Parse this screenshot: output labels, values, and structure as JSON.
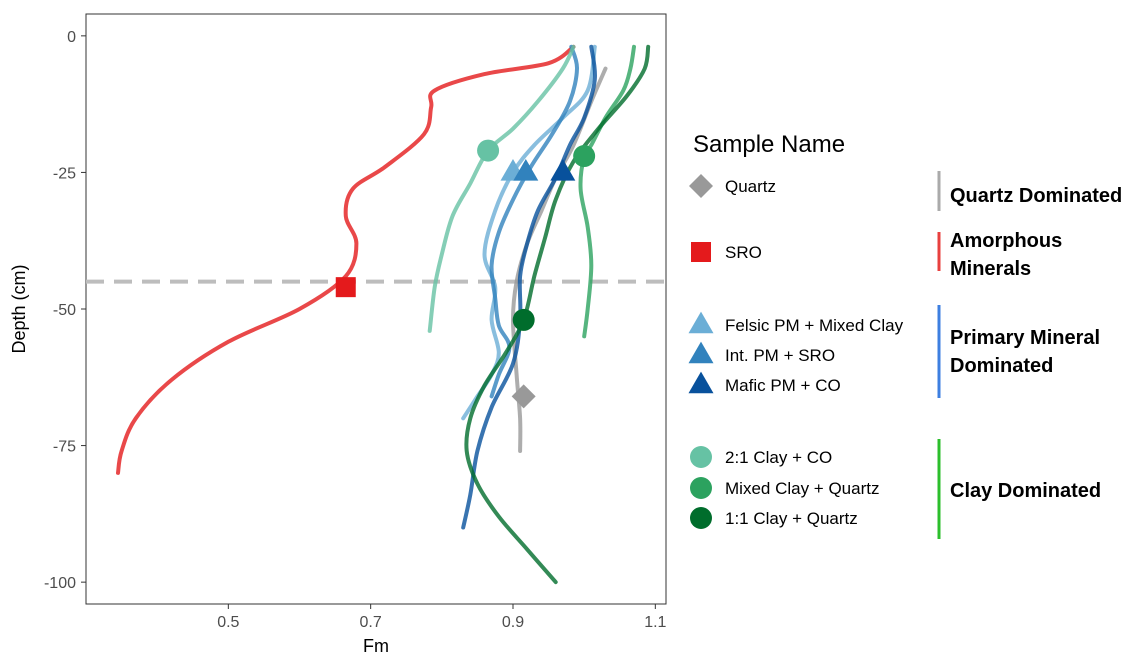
{
  "chart_data": {
    "type": "line",
    "xlabel": "Fm",
    "ylabel": "Depth (cm)",
    "xlim": [
      0.3,
      1.115
    ],
    "ylim": [
      -104,
      4
    ],
    "x_ticks": [
      0.5,
      0.7,
      0.9,
      1.1
    ],
    "x_tick_labels": [
      "0.5",
      "0.7",
      "0.9",
      "1.1"
    ],
    "y_ticks": [
      0,
      -25,
      -50,
      -75,
      -100
    ],
    "y_tick_labels": [
      "0",
      "-25",
      "-50",
      "-75",
      "-100"
    ],
    "grid": false,
    "reference_line": {
      "y": -45,
      "style": "dashed",
      "color": "#bdbdbd"
    },
    "legend": {
      "title": "Sample Name",
      "placement": "right",
      "groups": [
        {
          "label": "Quartz Dominated",
          "bar_color": "#aaaaaa",
          "members": [
            "Quartz"
          ]
        },
        {
          "label": "Amorphous Minerals",
          "bar_color": "#e8403f",
          "members": [
            "SRO"
          ]
        },
        {
          "label": "Primary Mineral Dominated",
          "bar_color": "#3d7fe0",
          "members": [
            "Felsic PM + Mixed Clay",
            "Int. PM + SRO",
            "Mafic PM + CO"
          ]
        },
        {
          "label": "Clay Dominated",
          "bar_color": "#2cbf2c",
          "members": [
            "2:1 Clay + CO",
            "Mixed Clay + Quartz",
            "1:1 Clay + Quartz"
          ]
        }
      ]
    },
    "series": [
      {
        "name": "Quartz",
        "color": "#999999",
        "shape": "diamond",
        "marker": {
          "x": 0.915,
          "y": -66
        },
        "profile": [
          [
            1.03,
            -6
          ],
          [
            1.01,
            -12
          ],
          [
            0.985,
            -20
          ],
          [
            0.96,
            -26
          ],
          [
            0.94,
            -32
          ],
          [
            0.92,
            -38
          ],
          [
            0.905,
            -45
          ],
          [
            0.9,
            -52
          ],
          [
            0.905,
            -62
          ],
          [
            0.91,
            -70
          ],
          [
            0.91,
            -76
          ]
        ]
      },
      {
        "name": "SRO",
        "color": "#e41a1c",
        "shape": "square",
        "marker": {
          "x": 0.665,
          "y": -46
        },
        "profile": [
          [
            0.985,
            -2
          ],
          [
            0.95,
            -5
          ],
          [
            0.86,
            -7
          ],
          [
            0.79,
            -10
          ],
          [
            0.785,
            -13
          ],
          [
            0.775,
            -18
          ],
          [
            0.72,
            -24
          ],
          [
            0.675,
            -28
          ],
          [
            0.665,
            -33
          ],
          [
            0.68,
            -38
          ],
          [
            0.665,
            -44
          ],
          [
            0.6,
            -50
          ],
          [
            0.5,
            -56
          ],
          [
            0.42,
            -63
          ],
          [
            0.37,
            -70
          ],
          [
            0.35,
            -76
          ],
          [
            0.345,
            -80
          ]
        ]
      },
      {
        "name": "Felsic PM + Mixed Clay",
        "color": "#6baed6",
        "shape": "triangle",
        "marker": {
          "x": 0.9,
          "y": -25
        },
        "profile": [
          [
            1.015,
            -2
          ],
          [
            1.005,
            -10
          ],
          [
            0.97,
            -15
          ],
          [
            0.93,
            -20
          ],
          [
            0.9,
            -25
          ],
          [
            0.875,
            -32
          ],
          [
            0.86,
            -40
          ],
          [
            0.875,
            -46
          ],
          [
            0.87,
            -52
          ],
          [
            0.88,
            -58
          ],
          [
            0.87,
            -62
          ],
          [
            0.85,
            -66
          ],
          [
            0.83,
            -70
          ]
        ]
      },
      {
        "name": "Int. PM + SRO",
        "color": "#3182bd",
        "shape": "triangle",
        "marker": {
          "x": 0.918,
          "y": -25
        },
        "profile": [
          [
            0.982,
            -2
          ],
          [
            0.99,
            -6
          ],
          [
            0.98,
            -12
          ],
          [
            0.955,
            -18
          ],
          [
            0.925,
            -24
          ],
          [
            0.9,
            -30
          ],
          [
            0.88,
            -36
          ],
          [
            0.87,
            -42
          ],
          [
            0.875,
            -48
          ],
          [
            0.88,
            -53
          ],
          [
            0.895,
            -57
          ],
          [
            0.88,
            -62
          ],
          [
            0.87,
            -66
          ]
        ]
      },
      {
        "name": "Mafic PM + CO",
        "color": "#08519c",
        "shape": "triangle",
        "marker": {
          "x": 0.97,
          "y": -25
        },
        "profile": [
          [
            1.01,
            -2
          ],
          [
            1.015,
            -8
          ],
          [
            1.0,
            -15
          ],
          [
            0.98,
            -20
          ],
          [
            0.96,
            -26
          ],
          [
            0.935,
            -32
          ],
          [
            0.92,
            -38
          ],
          [
            0.91,
            -44
          ],
          [
            0.91,
            -52
          ],
          [
            0.9,
            -60
          ],
          [
            0.87,
            -68
          ],
          [
            0.85,
            -76
          ],
          [
            0.84,
            -84
          ],
          [
            0.83,
            -90
          ]
        ]
      },
      {
        "name": "2:1 Clay + CO",
        "color": "#66c2a4",
        "shape": "circle",
        "marker": {
          "x": 0.865,
          "y": -21
        },
        "profile": [
          [
            0.985,
            -2
          ],
          [
            0.97,
            -6
          ],
          [
            0.935,
            -12
          ],
          [
            0.9,
            -17
          ],
          [
            0.865,
            -21
          ],
          [
            0.84,
            -27
          ],
          [
            0.815,
            -33
          ],
          [
            0.8,
            -40
          ],
          [
            0.79,
            -46
          ],
          [
            0.783,
            -54
          ]
        ]
      },
      {
        "name": "Mixed Clay + Quartz",
        "color": "#2ca25f",
        "shape": "circle",
        "marker": {
          "x": 1.0,
          "y": -22
        },
        "profile": [
          [
            1.07,
            -2
          ],
          [
            1.065,
            -6
          ],
          [
            1.055,
            -10
          ],
          [
            1.03,
            -15
          ],
          [
            1.01,
            -20
          ],
          [
            1.0,
            -22
          ],
          [
            0.995,
            -28
          ],
          [
            1.005,
            -35
          ],
          [
            1.01,
            -42
          ],
          [
            1.005,
            -50
          ],
          [
            1.0,
            -55
          ]
        ]
      },
      {
        "name": "1:1 Clay + Quartz",
        "color": "#006d2c",
        "shape": "circle",
        "marker": {
          "x": 0.915,
          "y": -52
        },
        "profile": [
          [
            1.09,
            -2
          ],
          [
            1.085,
            -6
          ],
          [
            1.06,
            -11
          ],
          [
            1.02,
            -17
          ],
          [
            0.985,
            -23
          ],
          [
            0.96,
            -30
          ],
          [
            0.945,
            -37
          ],
          [
            0.93,
            -44
          ],
          [
            0.915,
            -52
          ],
          [
            0.89,
            -58
          ],
          [
            0.86,
            -64
          ],
          [
            0.84,
            -70
          ],
          [
            0.835,
            -76
          ],
          [
            0.85,
            -82
          ],
          [
            0.88,
            -88
          ],
          [
            0.92,
            -94
          ],
          [
            0.96,
            -100
          ]
        ]
      }
    ]
  }
}
